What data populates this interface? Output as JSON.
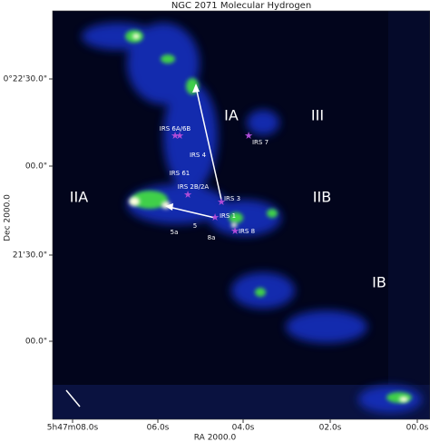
{
  "title": "NGC 2071 Molecular Hydrogen",
  "x_axis": {
    "label": "RA 2000.0",
    "ticks": [
      "5h47m08.0s",
      "06.0s",
      "04.0s",
      "02.0s",
      "00.0s"
    ]
  },
  "y_axis": {
    "label": "Dec 2000.0",
    "ticks": [
      "0°22'30.0\"",
      "00.0\"",
      "21'30.0\"",
      "00.0\""
    ]
  },
  "regions": [
    "IA",
    "III",
    "IIA",
    "IIB",
    "IB"
  ],
  "sources": [
    "IRS 6A/6B",
    "IRS 7",
    "IRS 4",
    "IRS 61",
    "IRS 2B/2A",
    "IRS 3",
    "IRS 1",
    "IRS 8",
    "5a",
    "5",
    "8a"
  ]
}
